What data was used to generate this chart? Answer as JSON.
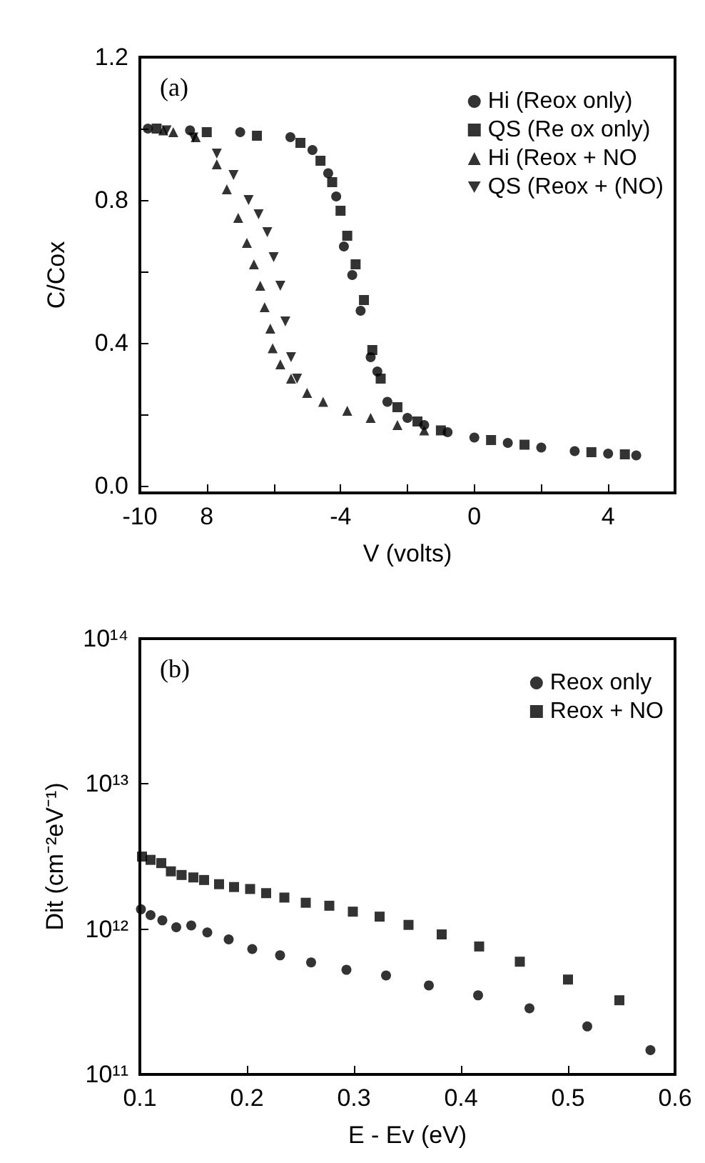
{
  "chart_data": [
    {
      "type": "scatter",
      "xlabel": "V (volts)",
      "ylabel": "C/Cox",
      "annotations": [
        "(a)"
      ],
      "xlim": [
        -10,
        6
      ],
      "ylim": [
        -0.02,
        1.2
      ],
      "xticks": [
        -10,
        {
          "value": -8,
          "label": "8"
        },
        {
          "value": -6,
          "label": null
        },
        -4,
        {
          "value": -2,
          "label": null
        },
        0,
        {
          "value": 2,
          "label": null
        },
        4
      ],
      "yticks": [
        {
          "value": 0,
          "label": "0.0"
        },
        {
          "value": 0.2,
          "label": null
        },
        0.4,
        {
          "value": 0.6,
          "label": null
        },
        0.8,
        {
          "value": 1.0,
          "label": null
        },
        1.2
      ],
      "grid": false,
      "legend": "top right",
      "series": [
        {
          "name": "Hi (Reox only)",
          "color": "#000000",
          "marker": "circle",
          "x": [
            -9.76,
            -8.5,
            -7,
            -5.5,
            -4.84,
            -4.37,
            -4.13,
            -3.9,
            -3.65,
            -3.4,
            -3.1,
            -2.9,
            -2.6,
            -2,
            -1.5,
            -0.8,
            0,
            1,
            2,
            3,
            4,
            4.84
          ],
          "values": [
            1.0,
            0.995,
            0.99,
            0.976,
            0.94,
            0.875,
            0.81,
            0.67,
            0.59,
            0.49,
            0.36,
            0.32,
            0.235,
            0.19,
            0.17,
            0.15,
            0.135,
            0.12,
            0.107,
            0.097,
            0.09,
            0.085
          ]
        },
        {
          "name": "QS (Re ox only)",
          "color": "#000000",
          "marker": "square",
          "x": [
            -9.5,
            -8,
            -6.5,
            -5.2,
            -4.6,
            -4.25,
            -4.0,
            -3.8,
            -3.55,
            -3.3,
            -3.05,
            -2.8,
            -2.3,
            -1.7,
            -1,
            0.5,
            1.5,
            3.5,
            4.5
          ],
          "values": [
            1.0,
            0.99,
            0.98,
            0.96,
            0.91,
            0.85,
            0.77,
            0.7,
            0.62,
            0.52,
            0.38,
            0.3,
            0.22,
            0.18,
            0.155,
            0.128,
            0.115,
            0.094,
            0.088
          ]
        },
        {
          "name": "Hi (Reox + NO",
          "color": "#000000",
          "marker": "triangle",
          "x": [
            -9.3,
            -9,
            -8.33,
            -7.7,
            -7.4,
            -7.06,
            -6.8,
            -6.59,
            -6.4,
            -6.27,
            -6.1,
            -6.03,
            -5.8,
            -5.48,
            -5,
            -4.52,
            -3.8,
            -3.1,
            -2.3,
            -1.5
          ],
          "values": [
            0.995,
            0.99,
            0.976,
            0.9,
            0.83,
            0.75,
            0.68,
            0.62,
            0.56,
            0.5,
            0.44,
            0.385,
            0.34,
            0.3,
            0.26,
            0.235,
            0.21,
            0.19,
            0.17,
            0.155
          ]
        },
        {
          "name": "QS (Reox + (NO)",
          "color": "#000000",
          "marker": "triangle-down",
          "x": [
            -9.2,
            -8.4,
            -7.7,
            -7.2,
            -6.75,
            -6.45,
            -6.19,
            -6.0,
            -5.8,
            -5.65,
            -5.48,
            -5.3
          ],
          "values": [
            0.995,
            0.975,
            0.93,
            0.87,
            0.8,
            0.76,
            0.71,
            0.64,
            0.56,
            0.46,
            0.36,
            0.3
          ]
        }
      ]
    },
    {
      "type": "scatter",
      "xlabel": "E - Ev (eV)",
      "ylabel": "Dit (cm⁻²eV⁻¹)",
      "annotations": [
        "(b)"
      ],
      "log": "y",
      "xlim": [
        0.1,
        0.6
      ],
      "ylim": [
        100000000000.0,
        100000000000000.0
      ],
      "xticks": [
        0.1,
        0.2,
        0.3,
        0.4,
        0.5,
        0.6
      ],
      "yticks": [
        {
          "value": 100000000000.0,
          "label": "10¹¹"
        },
        {
          "value": 1000000000000.0,
          "label": "10¹²"
        },
        {
          "value": 10000000000000.0,
          "label": "10¹³"
        },
        {
          "value": 100000000000000.0,
          "label": "10¹⁴"
        }
      ],
      "grid": false,
      "legend": "top right",
      "series": [
        {
          "name": "Reox only",
          "color": "#000000",
          "marker": "circle",
          "x": [
            0.101,
            0.11,
            0.121,
            0.134,
            0.148,
            0.163,
            0.183,
            0.205,
            0.231,
            0.26,
            0.293,
            0.33,
            0.37,
            0.416,
            0.464,
            0.518,
            0.577
          ],
          "values": [
            1370000000000.0,
            1250000000000.0,
            1150000000000.0,
            1030000000000.0,
            1060000000000.0,
            950000000000.0,
            850000000000.0,
            730000000000.0,
            660000000000.0,
            590000000000.0,
            525000000000.0,
            480000000000.0,
            410000000000.0,
            350000000000.0,
            285000000000.0,
            214000000000.0,
            147000000000.0
          ]
        },
        {
          "name": "Reox + NO",
          "color": "#000000",
          "marker": "square",
          "x": [
            0.102,
            0.11,
            0.12,
            0.129,
            0.139,
            0.15,
            0.16,
            0.174,
            0.188,
            0.203,
            0.218,
            0.235,
            0.255,
            0.277,
            0.299,
            0.324,
            0.351,
            0.382,
            0.417,
            0.455,
            0.5,
            0.548
          ],
          "values": [
            3160000000000.0,
            3000000000000.0,
            2850000000000.0,
            2500000000000.0,
            2360000000000.0,
            2270000000000.0,
            2180000000000.0,
            2040000000000.0,
            1950000000000.0,
            1890000000000.0,
            1770000000000.0,
            1650000000000.0,
            1520000000000.0,
            1450000000000.0,
            1320000000000.0,
            1220000000000.0,
            1070000000000.0,
            920000000000.0,
            760000000000.0,
            597000000000.0,
            450000000000.0,
            324000000000.0
          ]
        }
      ]
    }
  ]
}
